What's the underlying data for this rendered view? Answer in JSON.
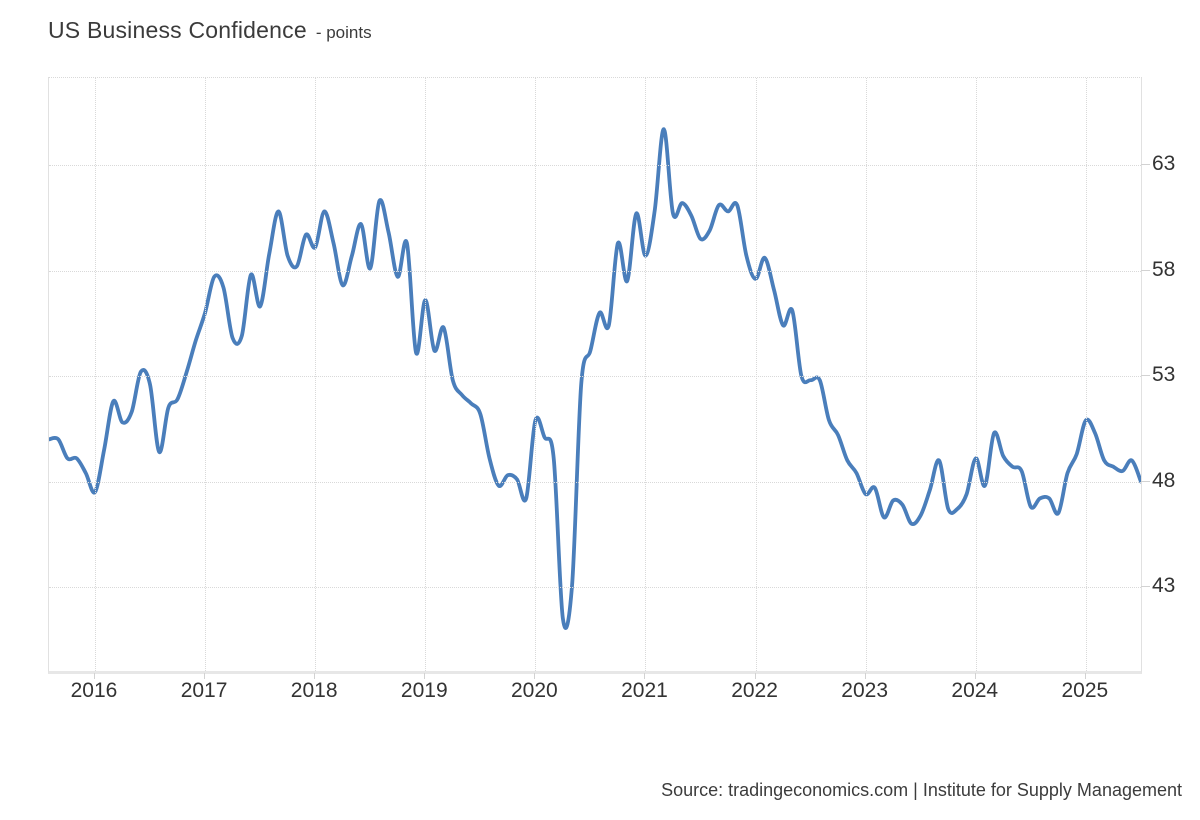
{
  "header": {
    "title": "US Business Confidence",
    "subtitle": "- points"
  },
  "source": {
    "text": "Source: tradingeconomics.com | Institute for Supply Management"
  },
  "colors": {
    "line": "#4a7ebb",
    "grid": "#d9d9d9",
    "axis_text": "#333333",
    "title_text": "#3b3b3b",
    "plot_border": "#e1e1e1"
  },
  "chart_data": {
    "type": "line",
    "title": "US Business Confidence",
    "unit": "points",
    "frequency": "monthly",
    "x_start": "2015-08",
    "x_end": "2025-07",
    "x_tick_labels": [
      "2016",
      "2017",
      "2018",
      "2019",
      "2020",
      "2021",
      "2022",
      "2023",
      "2024",
      "2025"
    ],
    "first_tick_month_index": 5,
    "months_per_tick": 12,
    "y_ticks": [
      63,
      58,
      53,
      48,
      43
    ],
    "y_domain_visible": [
      39.0,
      67.1
    ],
    "grid": "dotted",
    "legend": "none",
    "values": [
      50.0,
      50.0,
      49.1,
      49.1,
      48.4,
      47.5,
      49.5,
      51.8,
      50.8,
      51.3,
      53.2,
      52.6,
      49.4,
      51.5,
      51.9,
      53.2,
      54.7,
      56.0,
      57.7,
      57.2,
      54.8,
      54.9,
      57.8,
      56.3,
      58.8,
      60.8,
      58.7,
      58.2,
      59.7,
      59.1,
      60.8,
      59.3,
      57.3,
      58.7,
      60.2,
      58.1,
      61.3,
      59.8,
      57.7,
      59.3,
      54.1,
      56.6,
      54.2,
      55.3,
      52.8,
      52.1,
      51.7,
      51.2,
      49.1,
      47.8,
      48.3,
      48.1,
      47.2,
      50.9,
      50.1,
      49.1,
      41.5,
      43.1,
      52.6,
      54.2,
      56.0,
      55.4,
      59.3,
      57.5,
      60.7,
      58.7,
      60.8,
      64.7,
      60.7,
      61.2,
      60.6,
      59.5,
      59.9,
      61.1,
      60.8,
      61.1,
      58.7,
      57.6,
      58.6,
      57.1,
      55.4,
      56.1,
      53.0,
      52.8,
      52.8,
      50.9,
      50.2,
      49.0,
      48.4,
      47.4,
      47.7,
      46.3,
      47.1,
      46.9,
      46.0,
      46.4,
      47.6,
      49.0,
      46.7,
      46.7,
      47.4,
      49.1,
      47.8,
      50.3,
      49.2,
      48.7,
      48.5,
      46.8,
      47.2,
      47.2,
      46.5,
      48.4,
      49.3,
      50.9,
      50.3,
      49.0,
      48.7,
      48.5,
      49.0,
      48.0
    ]
  }
}
